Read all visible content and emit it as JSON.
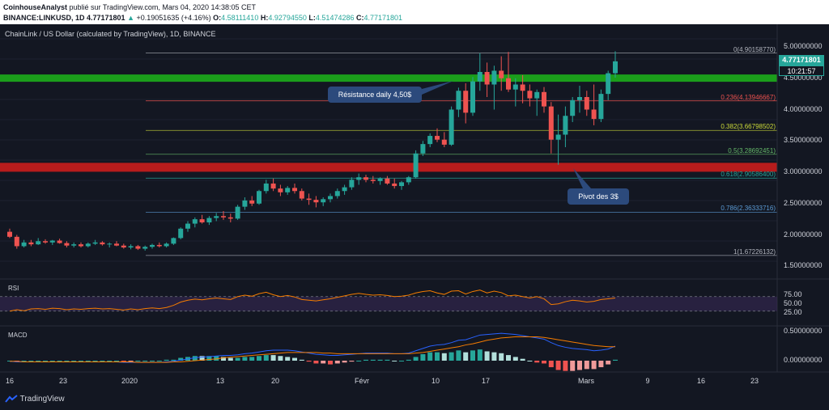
{
  "header": {
    "author": "CoinhouseAnalyst",
    "published": "publié sur TradingView.com, Mars 04, 2020 14:38:05 CET",
    "symbol": "BINANCE:LINKUSD, 1D 4.77171801",
    "change_arrow": "▲",
    "change": "+0.19051635 (+4.16%)",
    "o_label": "O:",
    "o_val": "4.58111410",
    "h_label": "H:",
    "h_val": "4.92794550",
    "l_label": "L:",
    "l_val": "4.51474286",
    "c_label": "C:",
    "c_val": "4.77171801"
  },
  "chart": {
    "title": "ChainLink / US Dollar (calculated by TradingView), 1D, BINANCE",
    "last_price": "4.77171801",
    "countdown": "10:21:57",
    "price_axis": [
      "5.00000000",
      "4.50000000",
      "4.00000000",
      "3.50000000",
      "3.00000000",
      "2.50000000",
      "2.00000000",
      "1.50000000"
    ],
    "fib": [
      {
        "label": "0(4.90158770)",
        "color": "#b2b5be"
      },
      {
        "label": "0.236(4.13946667)",
        "color": "#ef5350"
      },
      {
        "label": "0.382(3.66798502)",
        "color": "#cddc39"
      },
      {
        "label": "0.5(3.28692451)",
        "color": "#66bb6a"
      },
      {
        "label": "0.618(2.90586400)",
        "color": "#26a69a"
      },
      {
        "label": "0.786(2.36333716)",
        "color": "#5b9bd5"
      },
      {
        "label": "1(1.67226132)",
        "color": "#b2b5be"
      }
    ],
    "callout_resistance": "Résistance daily 4,50$",
    "callout_pivot": "Pivot des 3$",
    "colors": {
      "up": "#26a69a",
      "down": "#ef5350",
      "resistance": "#1b9e1b",
      "pivot": "#b71c1c"
    }
  },
  "rsi": {
    "label": "RSI",
    "axis": [
      "75.00",
      "50.00",
      "25.00"
    ]
  },
  "macd": {
    "label": "MACD",
    "axis": [
      "0.50000000",
      "0.00000000"
    ]
  },
  "xaxis": [
    "16",
    "23",
    "2020",
    "13",
    "20",
    "Févr",
    "10",
    "17",
    "Mars",
    "9",
    "16",
    "23"
  ],
  "footer": {
    "brand": "TradingView"
  },
  "candles": [
    [
      2.05,
      2.1,
      1.95,
      1.97
    ],
    [
      1.97,
      2.0,
      1.78,
      1.82
    ],
    [
      1.82,
      1.92,
      1.8,
      1.88
    ],
    [
      1.88,
      1.92,
      1.82,
      1.85
    ],
    [
      1.85,
      1.95,
      1.84,
      1.9
    ],
    [
      1.9,
      1.93,
      1.86,
      1.88
    ],
    [
      1.88,
      1.92,
      1.84,
      1.91
    ],
    [
      1.91,
      1.94,
      1.86,
      1.87
    ],
    [
      1.87,
      1.9,
      1.8,
      1.83
    ],
    [
      1.83,
      1.88,
      1.8,
      1.85
    ],
    [
      1.85,
      1.88,
      1.8,
      1.82
    ],
    [
      1.82,
      1.88,
      1.8,
      1.86
    ],
    [
      1.86,
      1.92,
      1.84,
      1.88
    ],
    [
      1.88,
      1.9,
      1.83,
      1.85
    ],
    [
      1.85,
      1.88,
      1.8,
      1.86
    ],
    [
      1.86,
      1.9,
      1.82,
      1.83
    ],
    [
      1.83,
      1.86,
      1.78,
      1.8
    ],
    [
      1.8,
      1.85,
      1.77,
      1.82
    ],
    [
      1.82,
      1.84,
      1.76,
      1.78
    ],
    [
      1.78,
      1.83,
      1.75,
      1.81
    ],
    [
      1.81,
      1.86,
      1.78,
      1.84
    ],
    [
      1.84,
      1.88,
      1.8,
      1.82
    ],
    [
      1.82,
      1.88,
      1.8,
      1.86
    ],
    [
      1.86,
      1.96,
      1.84,
      1.95
    ],
    [
      1.95,
      2.12,
      1.93,
      2.1
    ],
    [
      2.1,
      2.22,
      2.05,
      2.18
    ],
    [
      2.18,
      2.28,
      2.12,
      2.25
    ],
    [
      2.25,
      2.32,
      2.18,
      2.2
    ],
    [
      2.2,
      2.3,
      2.16,
      2.27
    ],
    [
      2.27,
      2.35,
      2.22,
      2.3
    ],
    [
      2.3,
      2.38,
      2.24,
      2.28
    ],
    [
      2.28,
      2.34,
      2.2,
      2.26
    ],
    [
      2.26,
      2.48,
      2.24,
      2.45
    ],
    [
      2.45,
      2.6,
      2.4,
      2.55
    ],
    [
      2.55,
      2.62,
      2.46,
      2.5
    ],
    [
      2.5,
      2.72,
      2.48,
      2.7
    ],
    [
      2.7,
      2.88,
      2.66,
      2.82
    ],
    [
      2.82,
      2.9,
      2.7,
      2.74
    ],
    [
      2.74,
      2.8,
      2.62,
      2.68
    ],
    [
      2.68,
      2.78,
      2.64,
      2.75
    ],
    [
      2.75,
      2.82,
      2.66,
      2.7
    ],
    [
      2.7,
      2.74,
      2.55,
      2.58
    ],
    [
      2.58,
      2.66,
      2.48,
      2.56
    ],
    [
      2.56,
      2.62,
      2.44,
      2.52
    ],
    [
      2.52,
      2.6,
      2.46,
      2.57
    ],
    [
      2.57,
      2.66,
      2.52,
      2.62
    ],
    [
      2.62,
      2.74,
      2.58,
      2.7
    ],
    [
      2.7,
      2.8,
      2.64,
      2.76
    ],
    [
      2.76,
      2.92,
      2.72,
      2.88
    ],
    [
      2.88,
      2.98,
      2.8,
      2.92
    ],
    [
      2.92,
      2.96,
      2.84,
      2.88
    ],
    [
      2.88,
      2.94,
      2.82,
      2.86
    ],
    [
      2.86,
      2.92,
      2.8,
      2.9
    ],
    [
      2.9,
      2.94,
      2.8,
      2.82
    ],
    [
      2.82,
      2.9,
      2.74,
      2.78
    ],
    [
      2.78,
      2.86,
      2.72,
      2.84
    ],
    [
      2.84,
      2.94,
      2.8,
      2.92
    ],
    [
      2.92,
      3.35,
      2.9,
      3.3
    ],
    [
      3.3,
      3.5,
      3.26,
      3.45
    ],
    [
      3.45,
      3.62,
      3.4,
      3.58
    ],
    [
      3.58,
      3.7,
      3.48,
      3.52
    ],
    [
      3.52,
      3.64,
      3.4,
      3.44
    ],
    [
      3.44,
      4.05,
      3.42,
      4.0
    ],
    [
      4.0,
      4.35,
      3.88,
      4.3
    ],
    [
      4.3,
      4.42,
      3.78,
      3.95
    ],
    [
      3.95,
      4.52,
      3.9,
      4.45
    ],
    [
      4.45,
      4.9,
      4.3,
      4.6
    ],
    [
      4.6,
      4.75,
      4.2,
      4.4
    ],
    [
      4.4,
      4.7,
      4.0,
      4.62
    ],
    [
      4.62,
      4.85,
      4.3,
      4.5
    ],
    [
      4.5,
      4.92,
      4.28,
      4.32
    ],
    [
      4.32,
      4.5,
      4.05,
      4.4
    ],
    [
      4.4,
      4.55,
      4.1,
      4.3
    ],
    [
      4.3,
      4.4,
      4.05,
      4.18
    ],
    [
      4.18,
      4.32,
      3.9,
      4.28
    ],
    [
      4.28,
      4.36,
      3.95,
      4.05
    ],
    [
      4.05,
      4.12,
      3.3,
      3.52
    ],
    [
      3.52,
      3.92,
      3.12,
      3.6
    ],
    [
      3.6,
      4.05,
      3.4,
      3.9
    ],
    [
      3.9,
      4.2,
      3.8,
      4.15
    ],
    [
      4.15,
      4.38,
      3.95,
      4.2
    ],
    [
      4.2,
      4.3,
      3.9,
      4.0
    ],
    [
      4.0,
      4.4,
      3.75,
      3.85
    ],
    [
      3.85,
      4.32,
      3.8,
      4.25
    ],
    [
      4.25,
      4.62,
      4.15,
      4.58
    ],
    [
      4.58,
      4.93,
      4.51,
      4.77
    ]
  ],
  "rsi_series": [
    30,
    34,
    31,
    36,
    37,
    35,
    38,
    37,
    34,
    36,
    35,
    37,
    38,
    36,
    37,
    35,
    33,
    36,
    34,
    37,
    39,
    37,
    40,
    46,
    55,
    60,
    63,
    61,
    64,
    66,
    64,
    62,
    70,
    74,
    71,
    78,
    82,
    75,
    70,
    73,
    69,
    62,
    60,
    58,
    61,
    64,
    68,
    72,
    76,
    79,
    76,
    74,
    75,
    73,
    70,
    71,
    74,
    80,
    84,
    86,
    80,
    76,
    85,
    86,
    77,
    84,
    88,
    80,
    85,
    81,
    72,
    74,
    70,
    66,
    70,
    64,
    48,
    50,
    56,
    60,
    58,
    55,
    57,
    62,
    64,
    66
  ],
  "macd_line": [
    -0.01,
    -0.02,
    -0.02,
    -0.02,
    -0.02,
    -0.02,
    -0.02,
    -0.02,
    -0.02,
    -0.02,
    -0.02,
    -0.02,
    -0.02,
    -0.02,
    -0.02,
    -0.02,
    -0.03,
    -0.03,
    -0.03,
    -0.03,
    -0.03,
    -0.03,
    -0.02,
    -0.01,
    0.01,
    0.03,
    0.05,
    0.06,
    0.07,
    0.08,
    0.09,
    0.09,
    0.1,
    0.12,
    0.13,
    0.15,
    0.17,
    0.18,
    0.18,
    0.18,
    0.17,
    0.15,
    0.13,
    0.11,
    0.1,
    0.09,
    0.09,
    0.1,
    0.11,
    0.12,
    0.13,
    0.13,
    0.13,
    0.13,
    0.12,
    0.12,
    0.13,
    0.17,
    0.21,
    0.25,
    0.27,
    0.28,
    0.31,
    0.35,
    0.36,
    0.4,
    0.44,
    0.45,
    0.46,
    0.47,
    0.46,
    0.45,
    0.43,
    0.41,
    0.39,
    0.37,
    0.31,
    0.26,
    0.23,
    0.21,
    0.2,
    0.19,
    0.17,
    0.18,
    0.2,
    0.25
  ],
  "signal_line": [
    -0.01,
    -0.01,
    -0.02,
    -0.02,
    -0.02,
    -0.02,
    -0.02,
    -0.02,
    -0.02,
    -0.02,
    -0.02,
    -0.02,
    -0.02,
    -0.02,
    -0.02,
    -0.02,
    -0.02,
    -0.02,
    -0.03,
    -0.03,
    -0.03,
    -0.03,
    -0.03,
    -0.02,
    -0.02,
    -0.01,
    0.0,
    0.01,
    0.02,
    0.03,
    0.05,
    0.06,
    0.07,
    0.08,
    0.09,
    0.1,
    0.11,
    0.12,
    0.13,
    0.14,
    0.14,
    0.14,
    0.14,
    0.14,
    0.13,
    0.13,
    0.12,
    0.12,
    0.12,
    0.12,
    0.12,
    0.12,
    0.12,
    0.12,
    0.12,
    0.12,
    0.12,
    0.13,
    0.14,
    0.16,
    0.18,
    0.2,
    0.22,
    0.24,
    0.27,
    0.29,
    0.32,
    0.35,
    0.37,
    0.39,
    0.4,
    0.41,
    0.41,
    0.41,
    0.41,
    0.4,
    0.38,
    0.36,
    0.34,
    0.32,
    0.3,
    0.28,
    0.26,
    0.25,
    0.24,
    0.24
  ]
}
